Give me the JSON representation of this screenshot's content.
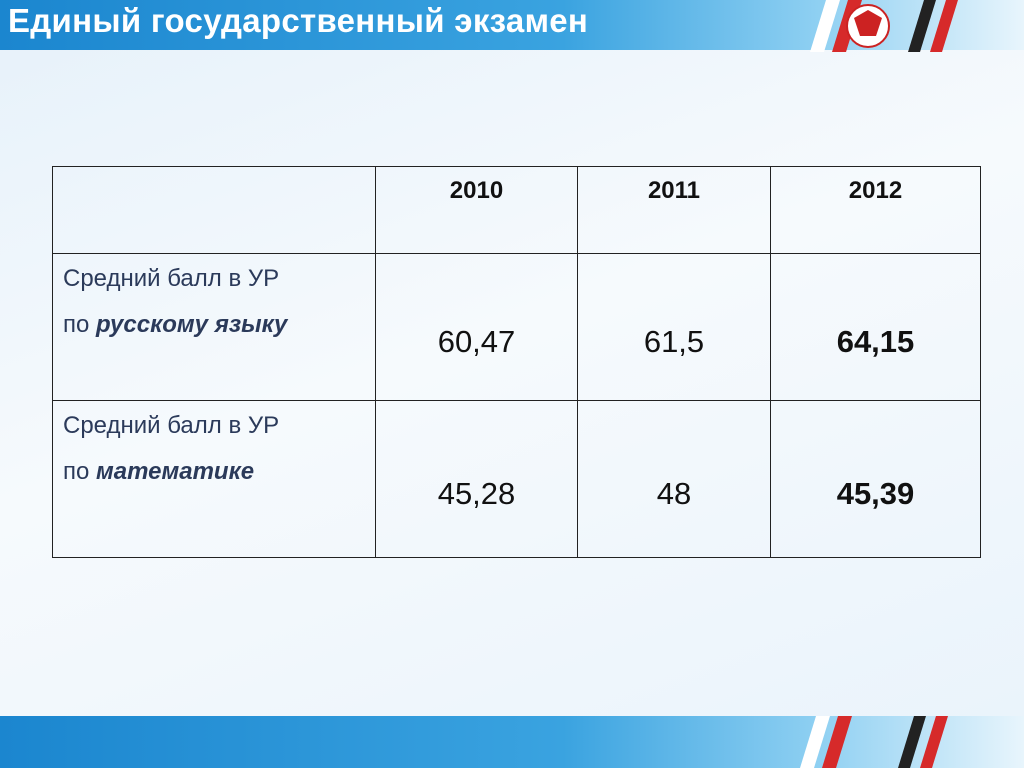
{
  "header": {
    "title": "Единый государственный экзамен"
  },
  "table": {
    "columns": [
      "2010",
      "2011",
      "2012"
    ],
    "rows": [
      {
        "label": "Средний балл в УР",
        "prefix": "по",
        "subject": "русскому языку",
        "values": [
          "60,47",
          "61,5",
          "64,15"
        ]
      },
      {
        "label": "Средний балл в УР",
        "prefix": "по",
        "subject": "математике",
        "values": [
          "45,28",
          "48",
          "45,39"
        ]
      }
    ]
  }
}
